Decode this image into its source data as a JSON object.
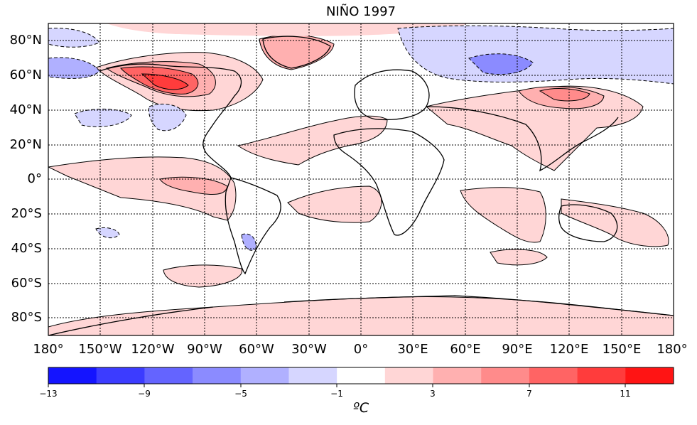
{
  "title": "NIÑO 1997",
  "lat_labels": [
    "80°N",
    "60°N",
    "40°N",
    "20°N",
    "0°",
    "20°S",
    "40°S",
    "60°S",
    "80°S"
  ],
  "lon_labels": [
    "180°",
    "150°W",
    "120°W",
    "90°W",
    "60°W",
    "30°W",
    "0°",
    "30°E",
    "60°E",
    "90°E",
    "120°E",
    "150°E",
    "180°"
  ],
  "colorbar": {
    "label": "ºC",
    "tick_labels": [
      "−13",
      "−9",
      "−5",
      "−1",
      "3",
      "7",
      "11"
    ],
    "bins": [
      {
        "color": "#1414ff"
      },
      {
        "color": "#3c3cff"
      },
      {
        "color": "#6464ff"
      },
      {
        "color": "#8b8bff"
      },
      {
        "color": "#b0b0ff"
      },
      {
        "color": "#d6d6ff"
      },
      {
        "color": "#ffffff"
      },
      {
        "color": "#ffd6d6"
      },
      {
        "color": "#ffb0b0"
      },
      {
        "color": "#ff8b8b"
      },
      {
        "color": "#ff6464"
      },
      {
        "color": "#ff3c3c"
      },
      {
        "color": "#ff1414"
      }
    ]
  },
  "colors": {
    "warm_light": "#ffd6d6",
    "warm_mid": "#ffb0b0",
    "warm_strong": "#ff6464",
    "cool_light": "#d6d6ff",
    "cool_mid": "#b0b0ff",
    "cool_strong": "#8b8bff"
  }
}
